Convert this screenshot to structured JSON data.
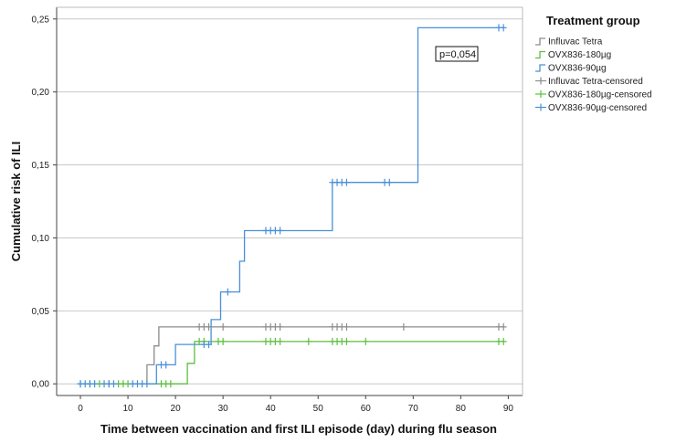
{
  "chart_data": {
    "type": "line",
    "chart_kind": "Kaplan-Meier cumulative incidence (step)",
    "xlabel": "Time between vaccination and first ILI episode (day) during flu season",
    "ylabel": "Cumulative risk of ILI",
    "xlim": [
      -5,
      93
    ],
    "ylim": [
      -0.008,
      0.258
    ],
    "x_ticks": [
      0,
      10,
      20,
      30,
      40,
      50,
      60,
      70,
      80,
      90
    ],
    "y_ticks": [
      0.0,
      0.05,
      0.1,
      0.15,
      0.2,
      0.25
    ],
    "y_tick_labels": [
      "0,00",
      "0,05",
      "0,10",
      "0,15",
      "0,20",
      "0,25"
    ],
    "grid": "horizontal",
    "legend_position": "top-right",
    "legend_title": "Treatment group",
    "annotation": "p=0,054",
    "series": [
      {
        "name": "Influvac Tetra",
        "color": "#8c8c8c",
        "steps": [
          [
            0,
            0.0
          ],
          [
            14,
            0.0
          ],
          [
            14,
            0.013
          ],
          [
            15.5,
            0.013
          ],
          [
            15.5,
            0.026
          ],
          [
            16.5,
            0.026
          ],
          [
            16.5,
            0.039
          ],
          [
            89,
            0.039
          ]
        ]
      },
      {
        "name": "OVX836-180µg",
        "color": "#5cbf3f",
        "steps": [
          [
            0,
            0.0
          ],
          [
            22.5,
            0.0
          ],
          [
            22.5,
            0.014
          ],
          [
            24,
            0.014
          ],
          [
            24,
            0.029
          ],
          [
            89,
            0.029
          ]
        ]
      },
      {
        "name": "OVX836-90µg",
        "color": "#4a90d9",
        "steps": [
          [
            0,
            0.0
          ],
          [
            16,
            0.0
          ],
          [
            16,
            0.013
          ],
          [
            20,
            0.013
          ],
          [
            20,
            0.027
          ],
          [
            27.5,
            0.027
          ],
          [
            27.5,
            0.044
          ],
          [
            29.5,
            0.044
          ],
          [
            29.5,
            0.063
          ],
          [
            33.5,
            0.063
          ],
          [
            33.5,
            0.084
          ],
          [
            34.5,
            0.084
          ],
          [
            34.5,
            0.105
          ],
          [
            53,
            0.105
          ],
          [
            53,
            0.138
          ],
          [
            71,
            0.138
          ],
          [
            71,
            0.244
          ],
          [
            89,
            0.244
          ]
        ]
      },
      {
        "name": "Influvac Tetra-censored",
        "color": "#8c8c8c",
        "points": [
          [
            25,
            0.039
          ],
          [
            26,
            0.039
          ],
          [
            27,
            0.039
          ],
          [
            30,
            0.039
          ],
          [
            39,
            0.039
          ],
          [
            40,
            0.039
          ],
          [
            41,
            0.039
          ],
          [
            42,
            0.039
          ],
          [
            53,
            0.039
          ],
          [
            54,
            0.039
          ],
          [
            55,
            0.039
          ],
          [
            56,
            0.039
          ],
          [
            68,
            0.039
          ],
          [
            88,
            0.039
          ],
          [
            89,
            0.039
          ]
        ]
      },
      {
        "name": "OVX836-180µg-censored",
        "color": "#5cbf3f",
        "points": [
          [
            0,
            0.0
          ],
          [
            2,
            0.0
          ],
          [
            4,
            0.0
          ],
          [
            6,
            0.0
          ],
          [
            8,
            0.0
          ],
          [
            9,
            0.0
          ],
          [
            10,
            0.0
          ],
          [
            17,
            0.0
          ],
          [
            18,
            0.0
          ],
          [
            19,
            0.0
          ],
          [
            25,
            0.029
          ],
          [
            26,
            0.029
          ],
          [
            29,
            0.029
          ],
          [
            30,
            0.029
          ],
          [
            39,
            0.029
          ],
          [
            40,
            0.029
          ],
          [
            41,
            0.029
          ],
          [
            42,
            0.029
          ],
          [
            48,
            0.029
          ],
          [
            53,
            0.029
          ],
          [
            54,
            0.029
          ],
          [
            55,
            0.029
          ],
          [
            56,
            0.029
          ],
          [
            60,
            0.029
          ],
          [
            88,
            0.029
          ],
          [
            89,
            0.029
          ]
        ]
      },
      {
        "name": "OVX836-90µg-censored",
        "color": "#4a90d9",
        "points": [
          [
            0,
            0.0
          ],
          [
            1,
            0.0
          ],
          [
            2,
            0.0
          ],
          [
            3,
            0.0
          ],
          [
            5,
            0.0
          ],
          [
            6,
            0.0
          ],
          [
            7,
            0.0
          ],
          [
            11,
            0.0
          ],
          [
            12,
            0.0
          ],
          [
            13,
            0.0
          ],
          [
            14,
            0.0
          ],
          [
            17,
            0.013
          ],
          [
            18,
            0.013
          ],
          [
            26,
            0.027
          ],
          [
            27,
            0.027
          ],
          [
            31,
            0.063
          ],
          [
            39,
            0.105
          ],
          [
            40,
            0.105
          ],
          [
            41,
            0.105
          ],
          [
            42,
            0.105
          ],
          [
            53,
            0.138
          ],
          [
            54,
            0.138
          ],
          [
            55,
            0.138
          ],
          [
            56,
            0.138
          ],
          [
            64,
            0.138
          ],
          [
            65,
            0.138
          ],
          [
            88,
            0.244
          ],
          [
            89,
            0.244
          ]
        ]
      }
    ]
  }
}
